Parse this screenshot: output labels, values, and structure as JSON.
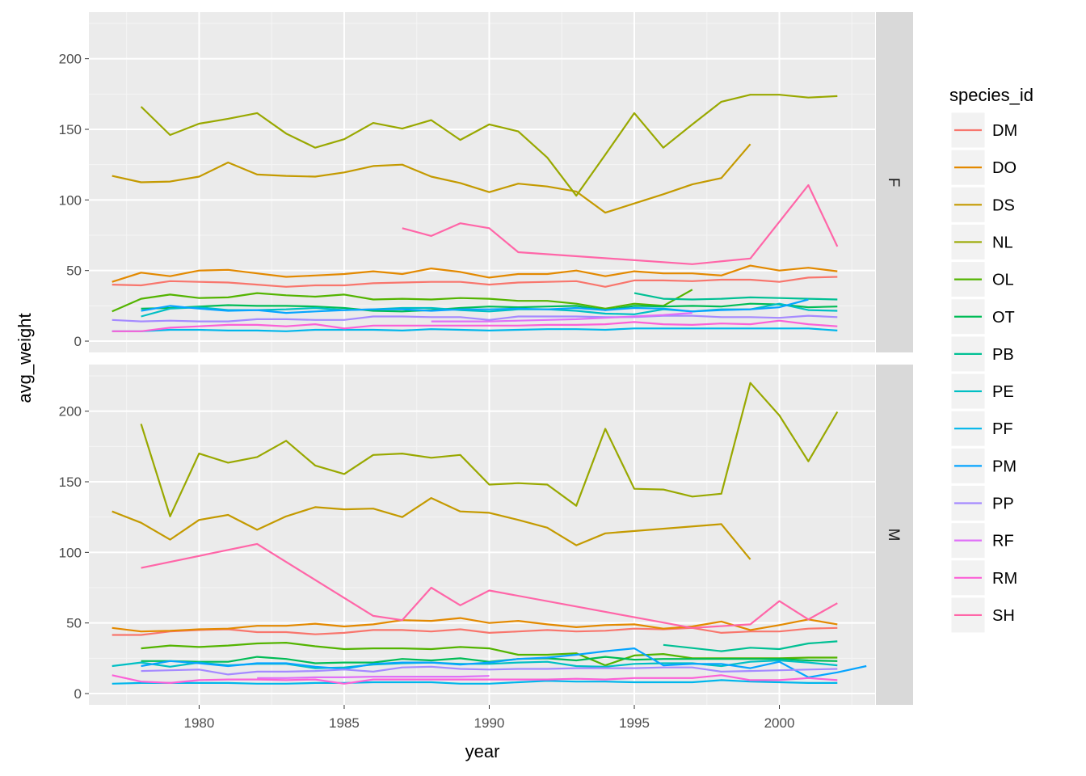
{
  "chart_data": {
    "type": "line",
    "facets": [
      "F",
      "M"
    ],
    "xlabel": "year",
    "ylabel": "avg_weight",
    "xlim": [
      1976.2,
      2003.3
    ],
    "ylim": [
      -8,
      233
    ],
    "xticks": [
      1980,
      1985,
      1990,
      1995,
      2000
    ],
    "yticks": [
      0,
      50,
      100,
      150,
      200
    ],
    "grid": true,
    "legend": {
      "title": "species_id",
      "position": "right"
    },
    "species": [
      "DM",
      "DO",
      "DS",
      "NL",
      "OL",
      "OT",
      "PB",
      "PE",
      "PF",
      "PM",
      "PP",
      "RF",
      "RM",
      "SH"
    ],
    "colors": {
      "DM": "#F8766D",
      "DO": "#E38900",
      "DS": "#C49A00",
      "NL": "#99A800",
      "OL": "#53B400",
      "OT": "#00BC56",
      "PB": "#00C094",
      "PE": "#00BFC4",
      "PF": "#00B6EB",
      "PM": "#06A4FF",
      "PP": "#A58AFF",
      "RF": "#DF70F8",
      "RM": "#FB61D7",
      "SH": "#FF66A8"
    },
    "series": {
      "F": {
        "DM": {
          "start": 1977,
          "y": [
            40,
            39.5,
            42.5,
            42,
            41.5,
            40,
            38.5,
            39.5,
            39.5,
            41,
            41.5,
            42,
            42,
            40,
            41.5,
            42,
            42.5,
            38.5,
            43,
            43,
            42.5,
            43.5,
            43.5,
            42,
            45,
            45.5
          ]
        },
        "DO": {
          "start": 1977,
          "y": [
            42,
            48.5,
            46,
            50,
            50.5,
            48,
            45.5,
            46.5,
            47.5,
            49.5,
            47.5,
            51.5,
            49,
            45,
            47.5,
            47.5,
            50,
            46,
            49.5,
            48,
            48,
            46.5,
            53.5,
            50,
            52,
            49.5
          ]
        },
        "DS": {
          "start": 1977,
          "y": [
            117,
            112.5,
            113,
            116.5,
            126.5,
            118,
            117,
            116.5,
            119.5,
            124,
            125,
            116.5,
            112,
            105.5,
            111.5,
            109.5,
            106,
            91,
            97.5,
            104,
            111,
            115.5,
            139.5
          ]
        },
        "NL": {
          "start": 1978,
          "y": [
            166,
            146,
            154,
            157.5,
            161.5,
            147,
            137,
            143,
            154.5,
            150.5,
            156.5,
            142.5,
            153.5,
            148.5,
            130,
            103,
            132,
            161.5,
            137,
            153.5,
            169.5,
            174.5,
            174.5,
            172.5,
            173.5
          ]
        },
        "OL": {
          "start": 1977,
          "y": [
            21,
            30,
            33,
            30.5,
            31,
            34,
            32.5,
            31.5,
            33,
            29.5,
            30,
            29.5,
            30.5,
            30,
            28.5,
            28.5,
            26.5,
            23,
            26.5,
            25,
            36.5
          ]
        },
        "OT": {
          "start": 1978,
          "y": [
            23,
            23.5,
            24.5,
            25.5,
            25,
            25,
            24.5,
            23.5,
            21.5,
            21,
            22,
            23.5,
            24.5,
            24,
            24.5,
            25,
            22,
            25,
            24.5,
            25,
            24.5,
            26.5,
            26,
            24,
            24.5
          ]
        },
        "PB": {
          "start": 1995,
          "y": [
            34,
            30,
            29.5,
            30,
            31,
            30.5,
            30,
            29.5
          ]
        },
        "PE": {
          "start": 1978,
          "y": [
            17.5,
            23,
            24,
            22,
            22,
            22.5,
            23.5,
            22,
            22.5,
            23.5,
            23.5,
            22,
            21,
            22.5,
            22.5,
            21.5,
            19.5,
            19,
            22.5,
            21,
            22.5,
            22.5,
            26.5,
            22,
            21.5
          ]
        },
        "PF": {
          "start": 1977,
          "y": [
            7,
            7,
            8,
            8,
            7.5,
            7.5,
            7,
            8,
            8,
            8,
            7.5,
            8.5,
            8,
            7.5,
            8,
            8.5,
            8.5,
            8,
            9,
            9,
            9,
            9,
            9,
            9,
            9,
            7.5
          ]
        },
        "PM": {
          "start": 1978,
          "y": [
            21.5,
            25,
            23,
            21.5,
            22,
            20,
            21,
            22,
            22.5,
            22.5,
            21.5,
            22.5,
            22.5,
            23,
            22.5,
            23.5,
            22,
            23.5,
            23,
            21,
            22,
            22.5,
            24,
            29.5
          ]
        },
        "PP": {
          "start": 1977,
          "y": [
            15,
            14,
            14.5,
            14,
            14,
            15.5,
            15.5,
            15,
            15,
            17.5,
            17.5,
            17,
            17,
            15,
            17.5,
            17.5,
            17.5,
            17,
            17,
            18,
            18,
            17,
            17,
            16.5,
            18,
            17
          ]
        },
        "RF": {
          "start": 1988,
          "y": [
            14,
            14,
            14,
            14.5,
            15,
            15.5,
            16.5,
            17.5,
            18.5,
            20
          ]
        },
        "RM": {
          "start": 1977,
          "y": [
            7,
            7,
            9.5,
            10.5,
            11.5,
            11.5,
            10.5,
            12,
            9,
            11,
            11,
            11,
            11,
            11,
            11,
            11.5,
            11.5,
            12,
            13.5,
            12,
            11.5,
            12.5,
            12,
            14.5,
            12,
            10.5
          ]
        },
        "SH": {
          "x": [
            1987,
            1988,
            1989,
            1990,
            1991,
            1997,
            1999,
            2001,
            2002
          ],
          "y": [
            80,
            74.5,
            83.5,
            80,
            63,
            54.5,
            58.5,
            110.5,
            67
          ]
        }
      },
      "M": {
        "DM": {
          "start": 1977,
          "y": [
            41.5,
            41.5,
            44,
            45,
            45.5,
            43.5,
            43.5,
            42,
            43,
            45,
            45,
            44,
            45.5,
            43,
            44,
            45,
            44,
            44.5,
            46,
            45.5,
            46.5,
            43,
            44,
            44,
            46,
            46.5
          ]
        },
        "DO": {
          "start": 1977,
          "y": [
            46.5,
            44,
            44.5,
            45.5,
            46,
            48,
            48,
            49.5,
            47.5,
            49,
            52,
            51.5,
            53.5,
            50,
            51.5,
            49,
            47,
            48.5,
            49,
            46,
            47.5,
            51,
            45,
            48.5,
            52.5,
            49
          ]
        },
        "DS": {
          "x": [
            1977,
            1978,
            1979,
            1980,
            1981,
            1982,
            1983,
            1984,
            1985,
            1986,
            1987,
            1988,
            1989,
            1990,
            1991,
            1992,
            1993,
            1994,
            1998,
            1999
          ],
          "y": [
            129,
            121,
            109,
            123,
            126.5,
            116,
            125.5,
            132,
            130.5,
            131,
            125,
            138.5,
            129,
            128,
            123,
            117.5,
            105,
            113.5,
            120,
            95
          ]
        },
        "NL": {
          "start": 1978,
          "y": [
            191,
            125.5,
            170,
            163.5,
            167.5,
            179,
            161.5,
            155.5,
            169,
            170,
            167,
            169,
            148,
            149,
            148,
            133,
            187.5,
            145,
            144.5,
            139.5,
            141.5,
            220,
            197,
            164.5,
            199.5
          ]
        },
        "OL": {
          "start": 1978,
          "y": [
            32,
            34,
            33,
            34,
            35.5,
            36,
            33.5,
            31.5,
            32,
            32,
            31.5,
            33,
            32,
            27.5,
            27.5,
            28.5,
            20,
            27,
            28,
            25,
            25,
            25,
            25,
            25.5,
            25.5
          ]
        },
        "OT": {
          "start": 1978,
          "y": [
            23,
            23,
            22.5,
            22.5,
            26,
            24.5,
            21.5,
            22,
            22,
            24.5,
            23.5,
            25,
            22.5,
            24.5,
            25,
            23.5,
            26,
            24,
            24.5,
            24.5,
            24.5,
            24.5,
            24.5,
            23.5,
            23
          ]
        },
        "PB": {
          "x": [
            1996,
            1998,
            1999,
            2000,
            2001,
            2002
          ],
          "y": [
            34.5,
            30,
            32.5,
            31.5,
            35.5,
            37
          ]
        },
        "PE": {
          "start": 1977,
          "y": [
            19.5,
            22,
            19,
            22,
            20,
            21,
            21,
            18,
            18.5,
            20.5,
            21.5,
            22,
            21,
            21,
            22,
            22.5,
            19.5,
            19,
            21,
            21.5,
            21.5,
            19.5,
            22.5,
            23.5,
            22,
            20
          ]
        },
        "PF": {
          "start": 1977,
          "y": [
            7,
            7.5,
            7.5,
            7.5,
            7.5,
            7,
            7,
            7.5,
            7.5,
            8,
            8,
            8,
            7,
            7,
            8,
            9,
            8.5,
            8.5,
            8,
            8,
            8,
            9.5,
            8.5,
            8,
            7.5,
            7.5
          ]
        },
        "PM": {
          "start": 1978,
          "y": [
            19.5,
            23,
            21.5,
            19.5,
            21.5,
            21.5,
            19,
            17.5,
            21,
            22,
            22,
            20.5,
            22,
            24.5,
            25.5,
            27.5,
            30,
            32,
            20,
            21,
            21,
            18,
            22.5,
            11.5,
            15,
            19.5
          ]
        },
        "PP": {
          "start": 1978,
          "y": [
            16,
            16.5,
            17,
            13.5,
            15.5,
            15.5,
            16,
            17,
            15.5,
            18.5,
            19,
            17.5,
            17,
            17.5,
            17.5,
            18,
            18,
            18,
            18.5,
            18.5,
            15.5,
            16,
            16.5,
            17,
            17.5
          ]
        },
        "RF": {
          "start": 1982,
          "y": [
            11,
            11,
            11.5,
            11.5,
            12,
            12,
            12,
            12,
            12.5
          ]
        },
        "RM": {
          "start": 1977,
          "y": [
            13,
            8.5,
            7.5,
            9.5,
            10,
            10,
            9.5,
            10,
            7,
            10,
            10,
            10,
            10,
            10,
            10,
            10,
            10.5,
            10,
            11,
            11,
            11,
            13,
            9.5,
            9.5,
            11,
            9.5
          ]
        },
        "SH": {
          "x": [
            1978,
            1982,
            1986,
            1987,
            1988,
            1989,
            1990,
            1997,
            1999,
            2000,
            2001,
            2002
          ],
          "y": [
            89,
            106,
            55,
            52,
            75,
            62.5,
            73,
            46.5,
            49,
            65.5,
            52.5,
            64
          ]
        }
      }
    }
  }
}
